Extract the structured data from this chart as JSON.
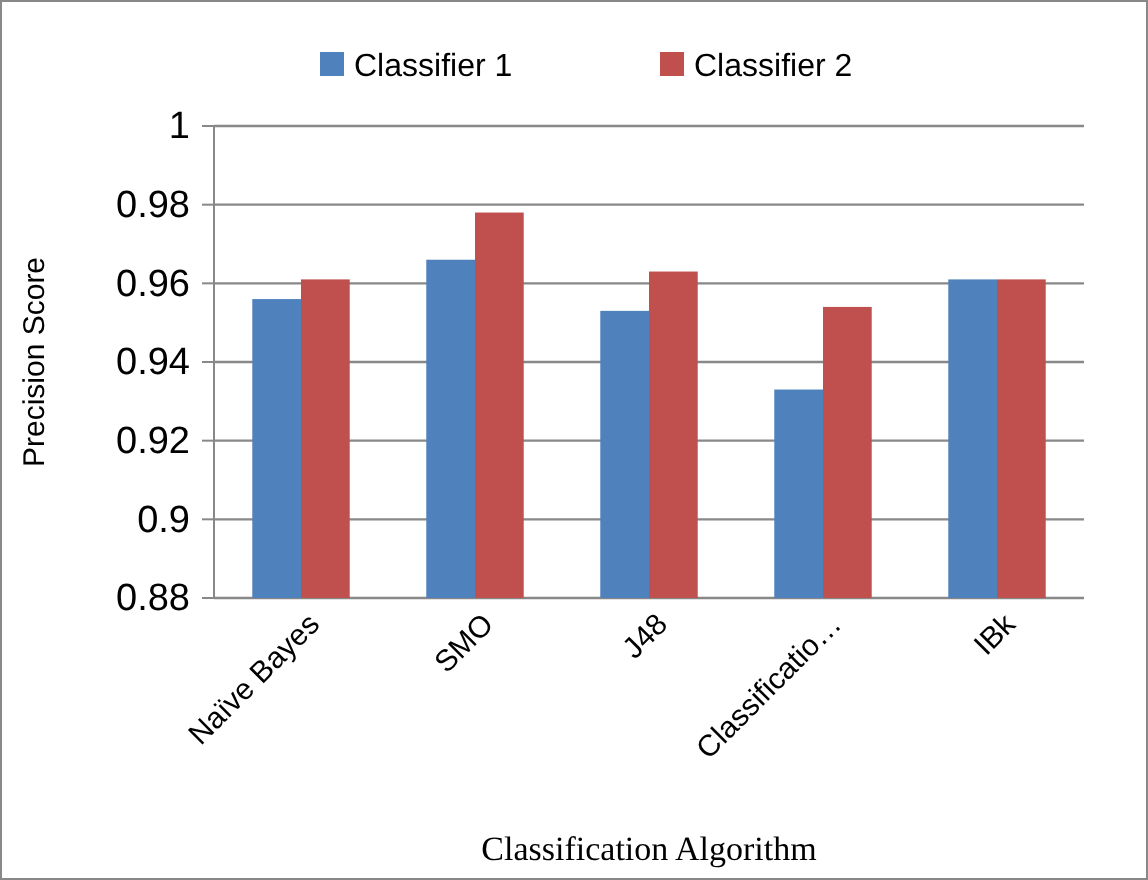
{
  "chart_data": {
    "type": "bar",
    "xlabel": "Classification  Algorithm",
    "ylabel": "Precision  Score",
    "categories": [
      "Naïve Bayes",
      "SMO",
      "J48",
      "Classificatio…",
      "IBk"
    ],
    "series": [
      {
        "name": "Classifier 1",
        "color": "#4f81bd",
        "values": [
          0.956,
          0.966,
          0.953,
          0.933,
          0.961
        ]
      },
      {
        "name": "Classifier 2",
        "color": "#c0504d",
        "values": [
          0.961,
          0.978,
          0.963,
          0.954,
          0.961
        ]
      }
    ],
    "ylim": [
      0.88,
      1
    ],
    "yticks": [
      0.88,
      0.9,
      0.92,
      0.94,
      0.96,
      0.98,
      1
    ],
    "grid": "y",
    "legend": "top"
  }
}
